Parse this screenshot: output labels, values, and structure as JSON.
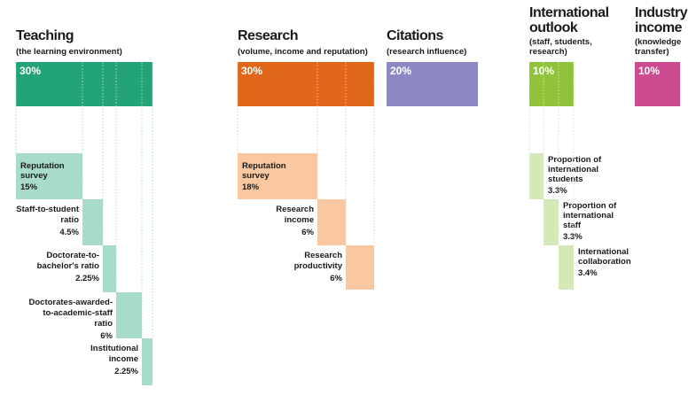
{
  "pillars": [
    {
      "title_lines": [
        "Teaching"
      ],
      "subtitle_lines": [
        "(the learning environment)"
      ],
      "weight": "30%",
      "metrics": [
        {
          "label_lines": [
            "Reputation",
            "survey"
          ],
          "weight": "15%"
        },
        {
          "label_lines": [
            "Staff-to-student",
            "ratio"
          ],
          "weight": "4.5%"
        },
        {
          "label_lines": [
            "Doctorate-to-",
            "bachelor's ratio"
          ],
          "weight": "2.25%"
        },
        {
          "label_lines": [
            "Doctorates-awarded-",
            "to-academic-staff",
            "ratio"
          ],
          "weight": "6%"
        },
        {
          "label_lines": [
            "Institutional",
            "income"
          ],
          "weight": "2.25%"
        }
      ]
    },
    {
      "title_lines": [
        "Research"
      ],
      "subtitle_lines": [
        "(volume, income and reputation)"
      ],
      "weight": "30%",
      "metrics": [
        {
          "label_lines": [
            "Reputation",
            "survey"
          ],
          "weight": "18%"
        },
        {
          "label_lines": [
            "Research",
            "income"
          ],
          "weight": "6%"
        },
        {
          "label_lines": [
            "Research",
            "productivity"
          ],
          "weight": "6%"
        }
      ]
    },
    {
      "title_lines": [
        "Citations"
      ],
      "subtitle_lines": [
        "(research influence)"
      ],
      "weight": "20%",
      "metrics": []
    },
    {
      "title_lines": [
        "International",
        "outlook"
      ],
      "subtitle_lines": [
        "(staff, students,",
        "research)"
      ],
      "weight": "10%",
      "metrics": [
        {
          "label_lines": [
            "Proportion of",
            "international",
            "students"
          ],
          "weight": "3.3%"
        },
        {
          "label_lines": [
            "Proportion of",
            "international",
            "staff"
          ],
          "weight": "3.3%"
        },
        {
          "label_lines": [
            "International",
            "collaboration"
          ],
          "weight": "3.4%"
        }
      ]
    },
    {
      "title_lines": [
        "Industry",
        "income"
      ],
      "subtitle_lines": [
        "(knowledge",
        "transfer)"
      ],
      "weight": "10%",
      "metrics": []
    }
  ]
}
